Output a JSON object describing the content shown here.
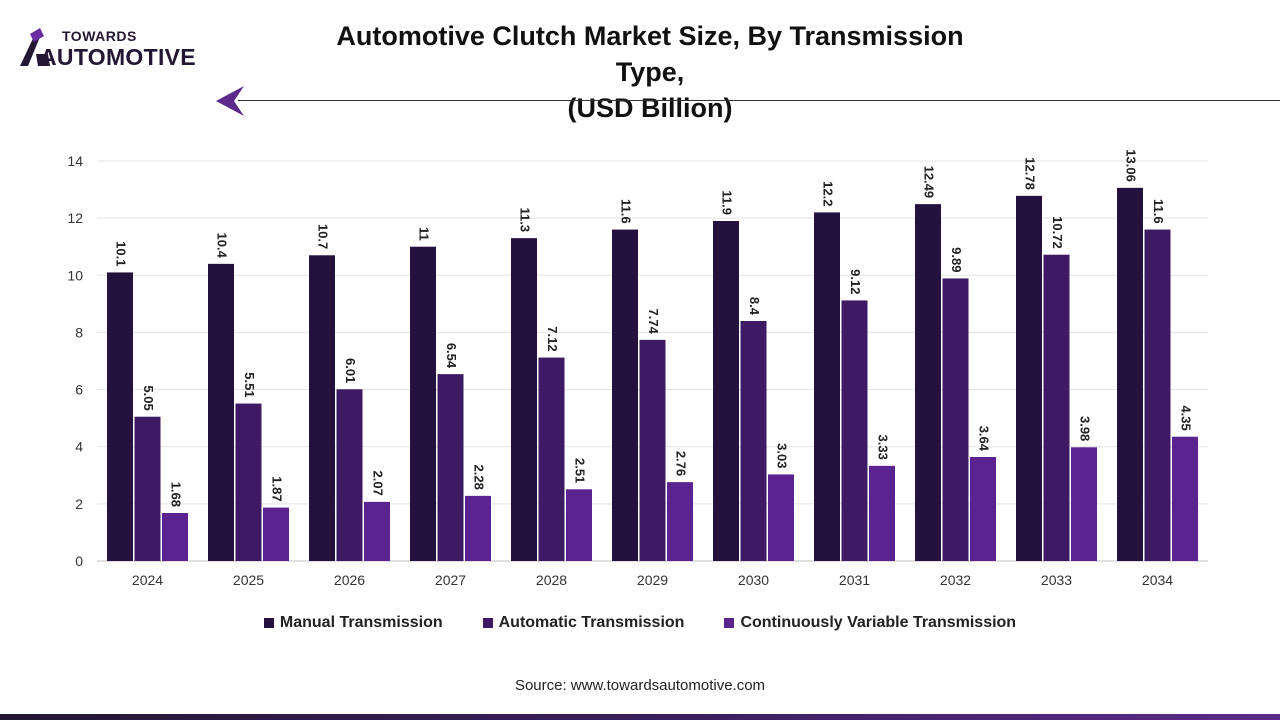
{
  "brand": {
    "top": "TOWARDS",
    "main": "AUTOMOTIVE"
  },
  "colors": {
    "manual": "#25113d",
    "automatic": "#3d1a63",
    "cvt": "#5b2390",
    "accent": "#5b2a8a"
  },
  "source": "Source: www.towardsautomotive.com",
  "chart_data": {
    "type": "bar",
    "title_lines": [
      "Automotive Clutch Market Size, By Transmission Type,",
      "(USD Billion)"
    ],
    "categories": [
      "2024",
      "2025",
      "2026",
      "2027",
      "2028",
      "2029",
      "2030",
      "2031",
      "2032",
      "2033",
      "2034"
    ],
    "series": [
      {
        "name": "Manual Transmission",
        "values": [
          10.1,
          10.4,
          10.7,
          11,
          11.3,
          11.6,
          11.9,
          12.2,
          12.49,
          12.78,
          13.06
        ],
        "labels": [
          "10.1",
          "10.4",
          "10.7",
          "11",
          "11.3",
          "11.6",
          "11.9",
          "12.2",
          "12.49",
          "12.78",
          "13.06"
        ]
      },
      {
        "name": "Automatic Transmission",
        "values": [
          5.05,
          5.51,
          6.01,
          6.54,
          7.12,
          7.74,
          8.4,
          9.12,
          9.89,
          10.72,
          11.6
        ],
        "labels": [
          "5.05",
          "5.51",
          "6.01",
          "6.54",
          "7.12",
          "7.74",
          "8.4",
          "9.12",
          "9.89",
          "10.72",
          "11.6"
        ]
      },
      {
        "name": "Continuously Variable Transmission",
        "values": [
          1.68,
          1.87,
          2.07,
          2.28,
          2.51,
          2.76,
          3.03,
          3.33,
          3.64,
          3.98,
          4.35
        ],
        "labels": [
          "1.68",
          "1.87",
          "2.07",
          "2.28",
          "2.51",
          "2.76",
          "3.03",
          "3.33",
          "3.64",
          "3.98",
          "4.35"
        ]
      }
    ],
    "ylim": [
      0,
      14
    ],
    "yticks": [
      "0",
      "2",
      "4",
      "6",
      "8",
      "10",
      "12",
      "14"
    ],
    "grid": true,
    "legend": "bottom"
  }
}
